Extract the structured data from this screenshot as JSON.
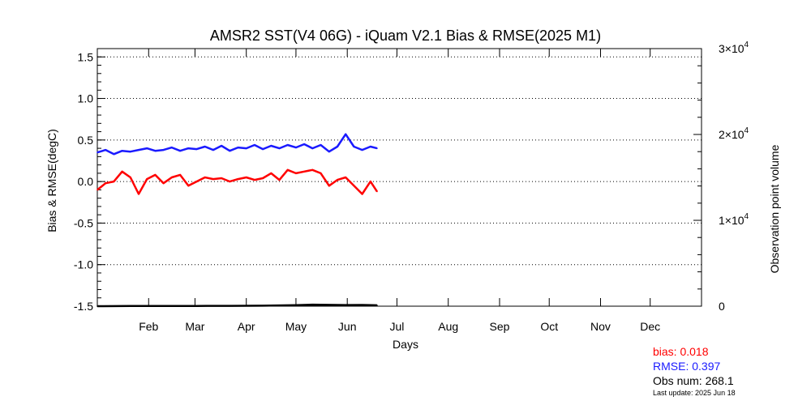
{
  "chart_data": {
    "type": "line",
    "title": "AMSR2 SST(V4 06G) - iQuam V2.1 Bias & RMSE(2025 M1)",
    "xlabel": "Days",
    "ylabel": "Bias & RMSE(degC)",
    "y2label": "Observation point volume",
    "xlim": [
      0,
      365
    ],
    "ylim": [
      -1.5,
      1.6
    ],
    "y2lim": [
      0,
      30000
    ],
    "month_ticks": [
      {
        "label": "Feb",
        "day": 31
      },
      {
        "label": "Mar",
        "day": 59
      },
      {
        "label": "Apr",
        "day": 90
      },
      {
        "label": "May",
        "day": 120
      },
      {
        "label": "Jun",
        "day": 151
      },
      {
        "label": "Jul",
        "day": 181
      },
      {
        "label": "Aug",
        "day": 212
      },
      {
        "label": "Sep",
        "day": 243
      },
      {
        "label": "Oct",
        "day": 273
      },
      {
        "label": "Nov",
        "day": 304
      },
      {
        "label": "Dec",
        "day": 334
      }
    ],
    "y_ticks": [
      "1.5",
      "1.0",
      "0.5",
      "0.0",
      "-0.5",
      "-1.0",
      "-1.5"
    ],
    "y_tick_values": [
      1.5,
      1.0,
      0.5,
      0.0,
      -0.5,
      -1.0,
      -1.5
    ],
    "y2_ticks": [
      {
        "base": "0",
        "exp": "",
        "value": 0
      },
      {
        "base": "1×10",
        "exp": "4",
        "value": 10000
      },
      {
        "base": "2×10",
        "exp": "4",
        "value": 20000
      },
      {
        "base": "3×10",
        "exp": "4",
        "value": 30000
      }
    ],
    "grid": "dotted horizontal",
    "series": [
      {
        "name": "RMSE",
        "color": "#1a1aff",
        "x": [
          0,
          5,
          10,
          15,
          20,
          25,
          30,
          35,
          40,
          45,
          50,
          55,
          60,
          65,
          70,
          75,
          80,
          85,
          90,
          95,
          100,
          105,
          110,
          115,
          120,
          125,
          130,
          135,
          140,
          145,
          150,
          155,
          160,
          165,
          169
        ],
        "values": [
          0.35,
          0.38,
          0.33,
          0.37,
          0.36,
          0.38,
          0.4,
          0.37,
          0.38,
          0.41,
          0.37,
          0.4,
          0.39,
          0.42,
          0.38,
          0.43,
          0.37,
          0.41,
          0.4,
          0.44,
          0.39,
          0.43,
          0.4,
          0.44,
          0.41,
          0.45,
          0.4,
          0.44,
          0.36,
          0.42,
          0.57,
          0.42,
          0.38,
          0.42,
          0.4
        ]
      },
      {
        "name": "bias",
        "color": "#ff0000",
        "x": [
          0,
          5,
          10,
          15,
          20,
          25,
          30,
          35,
          40,
          45,
          50,
          55,
          60,
          65,
          70,
          75,
          80,
          85,
          90,
          95,
          100,
          105,
          110,
          115,
          120,
          125,
          130,
          135,
          140,
          145,
          150,
          155,
          160,
          165,
          169
        ],
        "values": [
          -0.1,
          -0.02,
          0.0,
          0.12,
          0.05,
          -0.15,
          0.03,
          0.08,
          -0.02,
          0.05,
          0.08,
          -0.05,
          0.0,
          0.05,
          0.03,
          0.04,
          0.0,
          0.03,
          0.05,
          0.02,
          0.04,
          0.1,
          0.02,
          0.14,
          0.1,
          0.12,
          0.14,
          0.1,
          -0.05,
          0.02,
          0.05,
          -0.05,
          -0.15,
          0.0,
          -0.12
        ]
      },
      {
        "name": "Obs num",
        "axis": "right",
        "color": "#000000",
        "x": [
          0,
          20,
          40,
          60,
          80,
          100,
          120,
          130,
          140,
          150,
          160,
          169
        ],
        "values": [
          0,
          20,
          30,
          25,
          40,
          60,
          120,
          180,
          150,
          130,
          140,
          100
        ]
      }
    ]
  },
  "stats": {
    "bias": "bias: 0.018",
    "rmse": "RMSE: 0.397",
    "obs": "Obs num:  268.1",
    "update": "Last update: 2025 Jun 18"
  }
}
